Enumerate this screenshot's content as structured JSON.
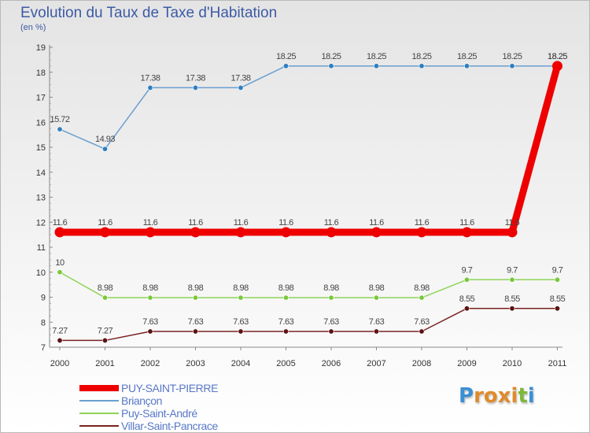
{
  "title": "Evolution du Taux de Taxe d'Habitation",
  "subtitle": "(en %)",
  "logo": {
    "text": "Proxiti",
    "letters": [
      "P",
      "r",
      "o",
      "x",
      "i",
      "t",
      "i"
    ],
    "colors": [
      "#3b8fd4",
      "#e08a2c",
      "#e08a2c",
      "#e08a2c",
      "#e08a2c",
      "#7cb83a",
      "#3b8fd4"
    ]
  },
  "chart_data": {
    "type": "line",
    "title": "Evolution du Taux de Taxe d'Habitation",
    "subtitle": "(en %)",
    "x": [
      "2000",
      "2001",
      "2002",
      "2003",
      "2004",
      "2005",
      "2006",
      "2007",
      "2008",
      "2009",
      "2010",
      "2011"
    ],
    "ylim": [
      7,
      19
    ],
    "yticks": [
      "7",
      "8",
      "9",
      "10",
      "11",
      "12",
      "13",
      "14",
      "15",
      "16",
      "17",
      "18",
      "19"
    ],
    "grid": false,
    "legend_position": "bottom-left",
    "series": [
      {
        "name": "PUY-SAINT-PIERRE",
        "color": "#ee0000",
        "values": [
          11.6,
          11.6,
          11.6,
          11.6,
          11.6,
          11.6,
          11.6,
          11.6,
          11.6,
          11.6,
          11.6,
          18.25
        ],
        "labels": [
          "11.6",
          "11.6",
          "11.6",
          "11.6",
          "11.6",
          "11.6",
          "11.6",
          "11.6",
          "11.6",
          "11.6",
          "11.6",
          "18.25"
        ],
        "emphasis": true
      },
      {
        "name": "Briançon",
        "color": "#6a9fd0",
        "point_color": "#2e7fc1",
        "values": [
          15.72,
          14.93,
          17.38,
          17.38,
          17.38,
          18.25,
          18.25,
          18.25,
          18.25,
          18.25,
          18.25,
          18.25
        ],
        "labels": [
          "15.72",
          "14.93",
          "17.38",
          "17.38",
          "17.38",
          "18.25",
          "18.25",
          "18.25",
          "18.25",
          "18.25",
          "18.25",
          "18.25"
        ]
      },
      {
        "name": "Puy-Saint-André",
        "color": "#8fd45a",
        "point_color": "#79c83c",
        "values": [
          10,
          8.98,
          8.98,
          8.98,
          8.98,
          8.98,
          8.98,
          8.98,
          8.98,
          9.7,
          9.7,
          9.7
        ],
        "labels": [
          "10",
          "8.98",
          "8.98",
          "8.98",
          "8.98",
          "8.98",
          "8.98",
          "8.98",
          "8.98",
          "9.7",
          "9.7",
          "9.7"
        ]
      },
      {
        "name": "Villar-Saint-Pancrace",
        "color": "#7a2222",
        "point_color": "#5c1212",
        "values": [
          7.27,
          7.27,
          7.63,
          7.63,
          7.63,
          7.63,
          7.63,
          7.63,
          7.63,
          8.55,
          8.55,
          8.55
        ],
        "labels": [
          "7.27",
          "7.27",
          "7.63",
          "7.63",
          "7.63",
          "7.63",
          "7.63",
          "7.63",
          "7.63",
          "8.55",
          "8.55",
          "8.55"
        ]
      }
    ]
  }
}
